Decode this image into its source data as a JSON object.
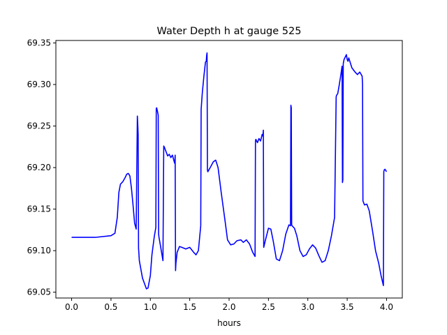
{
  "chart_data": {
    "type": "line",
    "title": "Water Depth h at gauge 525",
    "xlabel": "hours",
    "ylabel": "",
    "xlim": [
      -0.2,
      4.2
    ],
    "ylim": [
      69.043,
      69.353
    ],
    "xticks": [
      0.0,
      0.5,
      1.0,
      1.5,
      2.0,
      2.5,
      3.0,
      3.5,
      4.0
    ],
    "xtick_labels": [
      "0.0",
      "0.5",
      "1.0",
      "1.5",
      "2.0",
      "2.5",
      "3.0",
      "3.5",
      "4.0"
    ],
    "yticks": [
      69.05,
      69.1,
      69.15,
      69.2,
      69.25,
      69.3,
      69.35
    ],
    "ytick_labels": [
      "69.05",
      "69.10",
      "69.15",
      "69.20",
      "69.25",
      "69.30",
      "69.35"
    ],
    "grid": false,
    "series": [
      {
        "color": "#0000ff",
        "x": [
          0.0,
          0.3,
          0.5,
          0.55,
          0.58,
          0.6,
          0.62,
          0.65,
          0.68,
          0.7,
          0.72,
          0.74,
          0.76,
          0.78,
          0.8,
          0.82,
          0.835,
          0.84,
          0.845,
          0.85,
          0.855,
          0.86,
          0.9,
          0.95,
          0.97,
          1.0,
          1.02,
          1.05,
          1.07,
          1.075,
          1.08,
          1.09,
          1.1,
          1.105,
          1.11,
          1.13,
          1.16,
          1.17,
          1.175,
          1.18,
          1.2,
          1.22,
          1.24,
          1.26,
          1.28,
          1.3,
          1.31,
          1.315,
          1.32,
          1.325,
          1.34,
          1.37,
          1.4,
          1.45,
          1.5,
          1.55,
          1.58,
          1.61,
          1.64,
          1.645,
          1.66,
          1.68,
          1.7,
          1.71,
          1.715,
          1.72,
          1.725,
          1.73,
          1.76,
          1.8,
          1.83,
          1.86,
          1.9,
          1.95,
          1.98,
          2.02,
          2.06,
          2.1,
          2.15,
          2.18,
          2.22,
          2.26,
          2.3,
          2.33,
          2.335,
          2.34,
          2.36,
          2.38,
          2.4,
          2.42,
          2.43,
          2.435,
          2.44,
          2.46,
          2.5,
          2.53,
          2.56,
          2.6,
          2.64,
          2.68,
          2.72,
          2.76,
          2.78,
          2.785,
          2.79,
          2.795,
          2.8,
          2.83,
          2.86,
          2.9,
          2.94,
          2.98,
          3.02,
          3.06,
          3.1,
          3.14,
          3.18,
          3.22,
          3.26,
          3.3,
          3.34,
          3.36,
          3.365,
          3.38,
          3.4,
          3.42,
          3.435,
          3.44,
          3.445,
          3.45,
          3.46,
          3.48,
          3.49,
          3.5,
          3.51,
          3.52,
          3.54,
          3.56,
          3.6,
          3.63,
          3.66,
          3.69,
          3.695,
          3.7,
          3.72,
          3.75,
          3.78,
          3.82,
          3.86,
          3.9,
          3.93,
          3.96,
          3.965,
          3.97,
          3.98,
          4.0
        ],
        "y": [
          69.116,
          69.116,
          69.118,
          69.121,
          69.14,
          69.17,
          69.18,
          69.183,
          69.188,
          69.192,
          69.193,
          69.19,
          69.175,
          69.155,
          69.133,
          69.126,
          69.262,
          69.252,
          69.24,
          69.103,
          69.096,
          69.088,
          69.067,
          69.054,
          69.055,
          69.07,
          69.095,
          69.117,
          69.128,
          69.271,
          69.272,
          69.268,
          69.263,
          69.12,
          69.116,
          69.105,
          69.088,
          69.226,
          69.225,
          69.224,
          69.219,
          69.214,
          69.216,
          69.212,
          69.215,
          69.208,
          69.205,
          69.215,
          69.076,
          69.085,
          69.098,
          69.105,
          69.104,
          69.102,
          69.104,
          69.098,
          69.095,
          69.1,
          69.13,
          69.27,
          69.29,
          69.31,
          69.327,
          69.328,
          69.335,
          69.338,
          69.197,
          69.195,
          69.2,
          69.207,
          69.209,
          69.2,
          69.17,
          69.135,
          69.113,
          69.107,
          69.108,
          69.112,
          69.113,
          69.11,
          69.113,
          69.108,
          69.098,
          69.093,
          69.232,
          69.234,
          69.23,
          69.235,
          69.232,
          69.24,
          69.238,
          69.245,
          69.104,
          69.112,
          69.127,
          69.126,
          69.112,
          69.09,
          69.088,
          69.1,
          69.12,
          69.131,
          69.13,
          69.275,
          69.272,
          69.131,
          69.13,
          69.127,
          69.118,
          69.1,
          69.093,
          69.095,
          69.102,
          69.107,
          69.103,
          69.094,
          69.086,
          69.088,
          69.1,
          69.118,
          69.14,
          69.285,
          69.287,
          69.289,
          69.3,
          69.312,
          69.322,
          69.182,
          69.185,
          69.325,
          69.33,
          69.334,
          69.336,
          69.33,
          69.328,
          69.332,
          69.326,
          69.32,
          69.315,
          69.312,
          69.315,
          69.31,
          69.3,
          69.16,
          69.155,
          69.156,
          69.148,
          69.125,
          69.1,
          69.085,
          69.07,
          69.058,
          69.195,
          69.197,
          69.198,
          69.195
        ]
      }
    ]
  }
}
